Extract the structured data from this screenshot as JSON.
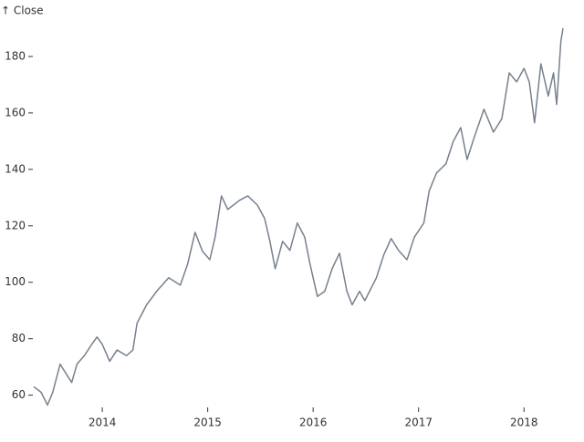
{
  "chart_data": {
    "type": "line",
    "y_label": "↑ Close",
    "color": "#76808d",
    "xlim": [
      2013.35,
      2018.37
    ],
    "xticks": [
      2014,
      2015,
      2016,
      2017,
      2018
    ],
    "ylim": [
      56,
      190
    ],
    "yticks": [
      60,
      80,
      100,
      120,
      140,
      160,
      180
    ],
    "x": [
      2013.35,
      2013.42,
      2013.48,
      2013.53,
      2013.6,
      2013.65,
      2013.71,
      2013.76,
      2013.83,
      2013.9,
      2013.95,
      2014.0,
      2014.07,
      2014.14,
      2014.23,
      2014.29,
      2014.33,
      2014.42,
      2014.52,
      2014.63,
      2014.74,
      2014.81,
      2014.88,
      2014.95,
      2015.02,
      2015.07,
      2015.13,
      2015.19,
      2015.3,
      2015.38,
      2015.47,
      2015.54,
      2015.59,
      2015.64,
      2015.71,
      2015.78,
      2015.85,
      2015.92,
      2015.97,
      2016.04,
      2016.11,
      2016.18,
      2016.25,
      2016.32,
      2016.37,
      2016.44,
      2016.49,
      2016.6,
      2016.67,
      2016.74,
      2016.81,
      2016.89,
      2016.96,
      2017.05,
      2017.1,
      2017.17,
      2017.26,
      2017.33,
      2017.4,
      2017.46,
      2017.53,
      2017.62,
      2017.71,
      2017.79,
      2017.86,
      2017.93,
      2018.0,
      2018.05,
      2018.1,
      2018.16,
      2018.23,
      2018.28,
      2018.31,
      2018.35,
      2018.37
    ],
    "values": [
      63,
      61,
      56.5,
      61,
      71,
      68,
      64.5,
      71,
      74,
      78,
      80.6,
      78,
      72,
      76,
      74,
      76,
      85.5,
      92,
      97,
      101.6,
      99,
      106.5,
      117.7,
      111,
      108,
      116,
      130.6,
      125.8,
      129,
      130.6,
      127.4,
      122.6,
      114.5,
      104.8,
      114.5,
      111.3,
      121,
      116,
      106.5,
      95,
      96.8,
      104.8,
      110.3,
      96.8,
      92,
      96.8,
      93.5,
      101.6,
      109.7,
      115.5,
      111.3,
      108,
      116,
      121,
      132.3,
      138.7,
      142,
      150,
      154.8,
      143.5,
      151.6,
      161.3,
      153.2,
      158,
      174.2,
      171,
      175.8,
      171,
      156.5,
      177.4,
      166,
      174.2,
      163,
      185.5,
      190
    ]
  }
}
